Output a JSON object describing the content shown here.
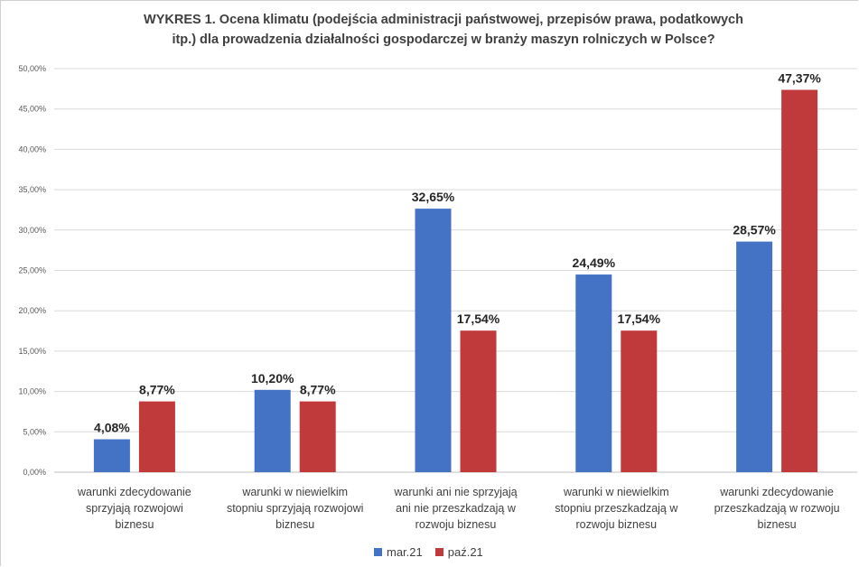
{
  "chart_data": {
    "type": "bar",
    "title_lines": [
      "WYKRES 1. Ocena klimatu (podejścia administracji państwowej, przepisów prawa, podatkowych",
      "itp.) dla prowadzenia działalności gospodarczej w branży maszyn rolniczych w Polsce?"
    ],
    "categories": [
      [
        "warunki zdecydowanie",
        "sprzyjają rozwojowi",
        "biznesu"
      ],
      [
        "warunki w niewielkim",
        "stopniu sprzyjają rozwojowi",
        "biznesu"
      ],
      [
        "warunki ani nie sprzyjają",
        "ani nie przeszkadzają w",
        "rozwoju biznesu"
      ],
      [
        "warunki w niewielkim",
        "stopniu przeszkadzają w",
        "rozwoju biznesu"
      ],
      [
        "warunki zdecydowanie",
        "przeszkadzają w rozwoju",
        "biznesu"
      ]
    ],
    "series": [
      {
        "name": "mar.21",
        "color": "#4472C4",
        "values": [
          4.08,
          10.2,
          32.65,
          24.49,
          28.57
        ],
        "labels": [
          "4,08%",
          "10,20%",
          "32,65%",
          "24,49%",
          "28,57%"
        ]
      },
      {
        "name": "paź.21",
        "color": "#C0393B",
        "values": [
          8.77,
          8.77,
          17.54,
          17.54,
          47.37
        ],
        "labels": [
          "8,77%",
          "8,77%",
          "17,54%",
          "17,54%",
          "47,37%"
        ]
      }
    ],
    "ylim": [
      0,
      50
    ],
    "yticks": [
      "0,00%",
      "5,00%",
      "10,00%",
      "15,00%",
      "20,00%",
      "25,00%",
      "30,00%",
      "35,00%",
      "40,00%",
      "45,00%",
      "50,00%"
    ],
    "grid": true,
    "legend_position": "bottom"
  }
}
